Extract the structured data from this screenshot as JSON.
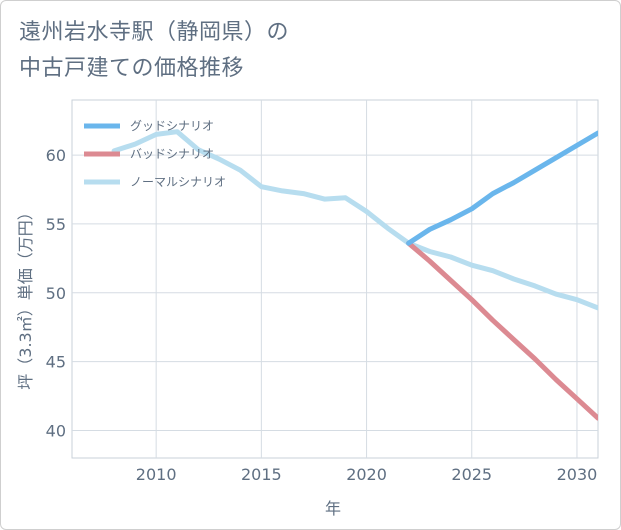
{
  "page": {
    "title_line1": "遠州岩水寺駅（静岡県）の",
    "title_line2": "中古戸建ての価格推移"
  },
  "chart_data": {
    "type": "line",
    "title": "遠州岩水寺駅（静岡県）の中古戸建ての価格推移",
    "xlabel": "年",
    "ylabel": "坪（3.3㎡）単価（万円）",
    "xlim": [
      2006,
      2031
    ],
    "ylim": [
      38,
      64
    ],
    "xticks": [
      2010,
      2015,
      2020,
      2025,
      2030
    ],
    "yticks": [
      40,
      45,
      50,
      55,
      60
    ],
    "grid": true,
    "legend_position": "top-left",
    "series": [
      {
        "name": "グッドシナリオ",
        "color": "#6ab6ec",
        "x": [
          2022,
          2023,
          2024,
          2025,
          2026,
          2027,
          2028,
          2029,
          2030,
          2031
        ],
        "y": [
          53.6,
          54.6,
          55.3,
          56.1,
          57.2,
          58.0,
          58.9,
          59.8,
          60.7,
          61.6
        ]
      },
      {
        "name": "バッドシナリオ",
        "color": "#dc8a92",
        "x": [
          2022,
          2023,
          2024,
          2025,
          2026,
          2027,
          2028,
          2029,
          2030,
          2031
        ],
        "y": [
          53.6,
          52.3,
          50.9,
          49.5,
          48.0,
          46.6,
          45.2,
          43.7,
          42.3,
          40.9
        ]
      },
      {
        "name": "ノーマルシナリオ",
        "color": "#b7ddef",
        "x": [
          2008,
          2009,
          2010,
          2011,
          2012,
          2013,
          2014,
          2015,
          2016,
          2017,
          2018,
          2019,
          2020,
          2021,
          2022,
          2023,
          2024,
          2025,
          2026,
          2027,
          2028,
          2029,
          2030,
          2031
        ],
        "y": [
          60.3,
          60.8,
          61.5,
          61.7,
          60.4,
          59.7,
          58.9,
          57.7,
          57.4,
          57.2,
          56.8,
          56.9,
          55.9,
          54.7,
          53.6,
          53.0,
          52.6,
          52.0,
          51.6,
          51.0,
          50.5,
          49.9,
          49.5,
          48.9
        ]
      }
    ]
  }
}
